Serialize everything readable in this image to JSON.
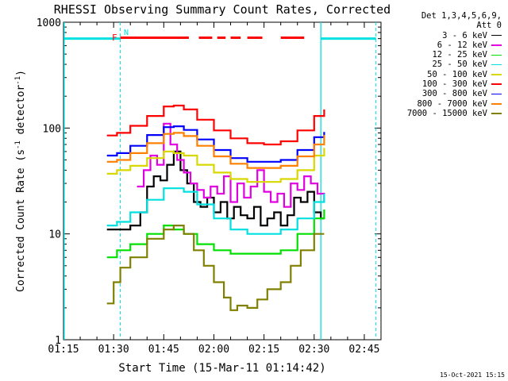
{
  "chart_data": {
    "type": "line",
    "title": "RHESSI Observing Summary Count Rates, Corrected",
    "xlabel": "Start Time (15-Mar-11 01:14:42)",
    "ylabel": "Corrected Count Rate (s-1 detector-1)",
    "ylabel_parts": {
      "main": "Corrected Count Rate (s",
      "sup1": "-1",
      "mid": " detector",
      "sup2": "-1",
      "end": ")"
    },
    "yscale": "log",
    "ylim": [
      1,
      1000
    ],
    "xlim_minutes": [
      75,
      170
    ],
    "x_ticks": [
      {
        "label": "01:15",
        "min": 75
      },
      {
        "label": "01:30",
        "min": 90
      },
      {
        "label": "01:45",
        "min": 105
      },
      {
        "label": "02:00",
        "min": 120
      },
      {
        "label": "02:15",
        "min": 135
      },
      {
        "label": "02:30",
        "min": 150
      },
      {
        "label": "02:45",
        "min": 165
      }
    ],
    "y_ticks": [
      {
        "label": "1",
        "value": 1
      },
      {
        "label": "10",
        "value": 10
      },
      {
        "label": "100",
        "value": 100
      },
      {
        "label": "1000",
        "value": 1000
      }
    ],
    "legend_header": [
      "Det 1,3,4,5,6,9,",
      "Att 0"
    ],
    "series": [
      {
        "name": "3 - 6 keV",
        "color": "#000000",
        "x": [
          88,
          91,
          95,
          98,
          100,
          102,
          104,
          106,
          108,
          110,
          112,
          114,
          116,
          118,
          120,
          122,
          124,
          126,
          128,
          130,
          132,
          134,
          136,
          138,
          140,
          142,
          144,
          146,
          148,
          150,
          152,
          153
        ],
        "values": [
          11,
          11,
          12,
          16,
          28,
          35,
          32,
          45,
          60,
          40,
          30,
          20,
          18,
          22,
          16,
          20,
          14,
          18,
          15,
          14,
          18,
          12,
          14,
          16,
          12,
          15,
          22,
          20,
          25,
          16,
          14,
          14
        ]
      },
      {
        "name": "6 - 12 keV",
        "color": "#e000e0",
        "x": [
          97,
          99,
          101,
          103,
          105,
          107,
          109,
          111,
          113,
          115,
          117,
          119,
          121,
          123,
          125,
          127,
          129,
          131,
          133,
          135,
          137,
          139,
          141,
          143,
          145,
          147,
          149,
          151,
          153
        ],
        "values": [
          28,
          40,
          55,
          45,
          110,
          70,
          50,
          38,
          30,
          26,
          22,
          28,
          24,
          35,
          20,
          30,
          22,
          28,
          40,
          25,
          20,
          24,
          18,
          30,
          26,
          35,
          30,
          24,
          20
        ]
      },
      {
        "name": "12 - 25 keV",
        "color": "#00e000",
        "x": [
          88,
          91,
          95,
          100,
          105,
          108,
          111,
          115,
          120,
          125,
          130,
          135,
          140,
          145,
          150,
          153
        ],
        "values": [
          6,
          7,
          8,
          10,
          12,
          11,
          10,
          8,
          7,
          6.5,
          6.5,
          6.5,
          7,
          10,
          14,
          17
        ]
      },
      {
        "name": "25 - 50 keV",
        "color": "#00e0e0",
        "x": [
          88,
          91,
          95,
          100,
          105,
          108,
          111,
          115,
          120,
          125,
          130,
          135,
          140,
          145,
          150,
          153
        ],
        "values": [
          12,
          13,
          16,
          21,
          27,
          27,
          25,
          19,
          14,
          11,
          10,
          10,
          11,
          14,
          20,
          24
        ]
      },
      {
        "name": "50 - 100 keV",
        "color": "#d8d800",
        "x": [
          88,
          91,
          95,
          100,
          105,
          108,
          111,
          115,
          120,
          125,
          130,
          135,
          140,
          145,
          150,
          153
        ],
        "values": [
          37,
          40,
          44,
          52,
          60,
          58,
          55,
          45,
          38,
          33,
          31,
          31,
          33,
          40,
          55,
          65
        ]
      },
      {
        "name": "100 - 300 keV",
        "color": "#ff0000",
        "x": [
          88,
          91,
          95,
          100,
          105,
          108,
          111,
          115,
          120,
          125,
          130,
          135,
          140,
          145,
          150,
          153
        ],
        "values": [
          85,
          90,
          105,
          130,
          160,
          163,
          150,
          120,
          95,
          80,
          72,
          70,
          75,
          95,
          130,
          150
        ]
      },
      {
        "name": "300 - 800 keV",
        "color": "#0000ff",
        "x": [
          88,
          91,
          95,
          100,
          105,
          108,
          111,
          115,
          120,
          125,
          130,
          135,
          140,
          145,
          150,
          153
        ],
        "values": [
          55,
          58,
          68,
          86,
          102,
          104,
          96,
          78,
          62,
          52,
          48,
          48,
          50,
          62,
          82,
          92
        ]
      },
      {
        "name": "800 - 7000 keV",
        "color": "#ff8000",
        "x": [
          88,
          91,
          95,
          100,
          105,
          108,
          111,
          115,
          120,
          125,
          130,
          135,
          140,
          145,
          150,
          153
        ],
        "values": [
          48,
          50,
          58,
          72,
          88,
          90,
          84,
          68,
          54,
          46,
          42,
          42,
          44,
          54,
          70,
          86
        ]
      },
      {
        "name": "7000 - 15000 keV",
        "color": "#808000",
        "x": [
          88,
          90,
          92,
          95,
          100,
          105,
          108,
          111,
          114,
          117,
          120,
          123,
          125,
          127,
          130,
          133,
          136,
          140,
          143,
          146,
          150,
          153
        ],
        "values": [
          2.2,
          3.5,
          4.8,
          6,
          9,
          11,
          12,
          10,
          7,
          5,
          3.5,
          2.5,
          1.9,
          2.1,
          2,
          2.4,
          3,
          3.5,
          5,
          7,
          10,
          10
        ]
      }
    ],
    "annotations": [
      {
        "text": "F",
        "color": "#ff0000",
        "x_min": 90.8
      },
      {
        "text": "N",
        "color": "#00e0e0",
        "x_min": 90.8
      }
    ],
    "flare_segments_minutes": [
      [
        92,
        112.5
      ],
      [
        115.5,
        119.5
      ],
      [
        121,
        123.5
      ],
      [
        125,
        128
      ],
      [
        130,
        134.5
      ],
      [
        140,
        147
      ]
    ],
    "night_vertical_lines_minutes": {
      "solid": [
        75.2,
        152
      ],
      "dashed": [
        92,
        168.5
      ]
    }
  },
  "footer": {
    "date": "15-Oct-2021 15:15"
  }
}
